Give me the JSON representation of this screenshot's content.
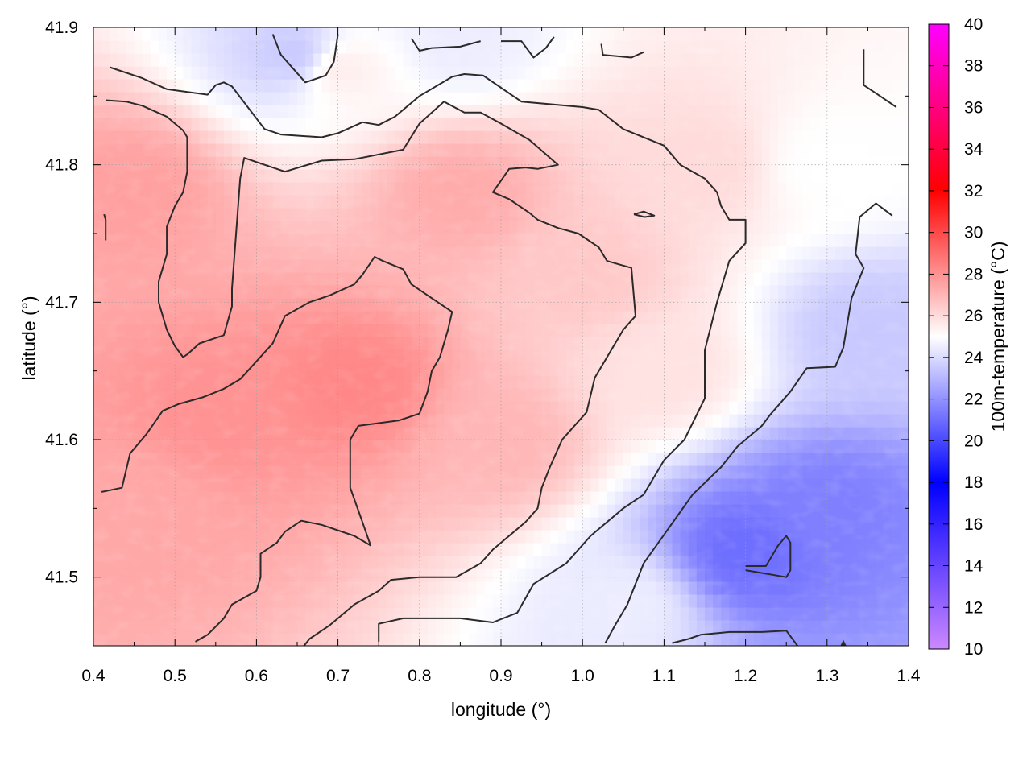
{
  "chart_data": {
    "type": "heatmap",
    "xlabel": "longitude (°)",
    "ylabel": "latitude (°)",
    "colorbar_label": "100m-temperature (°C)",
    "xlim": [
      0.4,
      1.4
    ],
    "ylim": [
      41.45,
      41.9
    ],
    "xticks": [
      "0.4",
      "0.5",
      "0.6",
      "0.7",
      "0.8",
      "0.9",
      "1.0",
      "1.1",
      "1.2",
      "1.3",
      "1.4"
    ],
    "yticks": [
      "41.5",
      "41.6",
      "41.7",
      "41.8",
      "41.9"
    ],
    "colorbar_range": [
      10,
      40
    ],
    "colorbar_ticks": [
      "10",
      "12",
      "14",
      "16",
      "18",
      "20",
      "22",
      "24",
      "26",
      "28",
      "30",
      "32",
      "34",
      "36",
      "38",
      "40"
    ],
    "colorbar_stops": [
      {
        "value": 10,
        "color": "#cc88ff"
      },
      {
        "value": 18,
        "color": "#0000ff"
      },
      {
        "value": 25,
        "color": "#ffffff"
      },
      {
        "value": 32,
        "color": "#ff0000"
      },
      {
        "value": 40,
        "color": "#ff00ff"
      }
    ],
    "grid": "dotted",
    "field_regions": [
      {
        "lon": 0.55,
        "lat": 41.62,
        "temp": 28.0
      },
      {
        "lon": 0.72,
        "lat": 41.64,
        "temp": 28.3
      },
      {
        "lon": 0.45,
        "lat": 41.78,
        "temp": 27.6
      },
      {
        "lon": 0.45,
        "lat": 41.55,
        "temp": 27.4
      },
      {
        "lon": 0.85,
        "lat": 41.78,
        "temp": 27.3
      },
      {
        "lon": 0.9,
        "lat": 41.6,
        "temp": 27.0
      },
      {
        "lon": 0.7,
        "lat": 41.87,
        "temp": 25.5
      },
      {
        "lon": 1.0,
        "lat": 41.72,
        "temp": 26.5
      },
      {
        "lon": 1.15,
        "lat": 41.8,
        "temp": 26.0
      },
      {
        "lon": 1.1,
        "lat": 41.65,
        "temp": 25.8
      },
      {
        "lon": 1.3,
        "lat": 41.8,
        "temp": 25.0
      },
      {
        "lon": 1.35,
        "lat": 41.68,
        "temp": 23.5
      },
      {
        "lon": 1.2,
        "lat": 41.52,
        "temp": 21.0
      },
      {
        "lon": 1.3,
        "lat": 41.55,
        "temp": 21.5
      },
      {
        "lon": 1.05,
        "lat": 41.48,
        "temp": 24.5
      },
      {
        "lon": 0.65,
        "lat": 41.88,
        "temp": 23.5
      },
      {
        "lon": 0.85,
        "lat": 41.89,
        "temp": 24.5
      }
    ],
    "contours": [
      [
        [
          0.42,
          41.871
        ],
        [
          0.46,
          41.863
        ],
        [
          0.49,
          41.855
        ],
        [
          0.54,
          41.851
        ],
        [
          0.55,
          41.858
        ],
        [
          0.56,
          41.86
        ],
        [
          0.57,
          41.857
        ],
        [
          0.61,
          41.826
        ],
        [
          0.63,
          41.822
        ],
        [
          0.68,
          41.82
        ],
        [
          0.7,
          41.823
        ],
        [
          0.73,
          41.831
        ],
        [
          0.75,
          41.829
        ],
        [
          0.77,
          41.835
        ],
        [
          0.8,
          41.85
        ],
        [
          0.84,
          41.864
        ],
        [
          0.855,
          41.866
        ],
        [
          0.878,
          41.865
        ],
        [
          0.925,
          41.846
        ],
        [
          1.0,
          41.842
        ],
        [
          1.02,
          41.84
        ],
        [
          1.05,
          41.826
        ],
        [
          1.1,
          41.814
        ],
        [
          1.12,
          41.8
        ],
        [
          1.15,
          41.79
        ],
        [
          1.165,
          41.78
        ],
        [
          1.17,
          41.77
        ],
        [
          1.18,
          41.76
        ],
        [
          1.2,
          41.76
        ],
        [
          1.2,
          41.743
        ],
        [
          1.18,
          41.73
        ],
        [
          1.165,
          41.7
        ],
        [
          1.15,
          41.665
        ],
        [
          1.15,
          41.638
        ],
        [
          1.15,
          41.63
        ],
        [
          1.125,
          41.6
        ],
        [
          1.1,
          41.585
        ],
        [
          1.075,
          41.56
        ],
        [
          1.05,
          41.55
        ],
        [
          1.01,
          41.53
        ],
        [
          0.98,
          41.51
        ],
        [
          0.94,
          41.495
        ],
        [
          0.92,
          41.474
        ],
        [
          0.89,
          41.467
        ],
        [
          0.85,
          41.47
        ],
        [
          0.78,
          41.47
        ],
        [
          0.75,
          41.466
        ],
        [
          0.75,
          41.453
        ]
      ],
      [
        [
          0.415,
          41.847
        ],
        [
          0.44,
          41.846
        ],
        [
          0.46,
          41.843
        ],
        [
          0.49,
          41.835
        ],
        [
          0.51,
          41.825
        ],
        [
          0.515,
          41.82
        ],
        [
          0.515,
          41.795
        ],
        [
          0.51,
          41.78
        ],
        [
          0.5,
          41.77
        ],
        [
          0.49,
          41.755
        ],
        [
          0.49,
          41.735
        ],
        [
          0.48,
          41.715
        ],
        [
          0.48,
          41.7
        ],
        [
          0.49,
          41.68
        ],
        [
          0.5,
          41.668
        ],
        [
          0.51,
          41.66
        ],
        [
          0.515,
          41.662
        ],
        [
          0.53,
          41.67
        ],
        [
          0.56,
          41.676
        ],
        [
          0.57,
          41.697
        ],
        [
          0.57,
          41.71
        ],
        [
          0.575,
          41.75
        ],
        [
          0.58,
          41.79
        ],
        [
          0.585,
          41.805
        ],
        [
          0.61,
          41.8
        ],
        [
          0.635,
          41.795
        ],
        [
          0.68,
          41.803
        ],
        [
          0.72,
          41.804
        ],
        [
          0.78,
          41.811
        ],
        [
          0.8,
          41.83
        ],
        [
          0.83,
          41.846
        ],
        [
          0.855,
          41.838
        ],
        [
          0.875,
          41.838
        ],
        [
          0.9,
          41.83
        ],
        [
          0.935,
          41.818
        ],
        [
          0.97,
          41.8
        ],
        [
          0.945,
          41.797
        ],
        [
          0.93,
          41.798
        ],
        [
          0.91,
          41.797
        ],
        [
          0.89,
          41.78
        ],
        [
          0.91,
          41.775
        ],
        [
          0.935,
          41.765
        ],
        [
          0.945,
          41.76
        ],
        [
          0.97,
          41.754
        ],
        [
          0.995,
          41.75
        ],
        [
          1.02,
          41.74
        ],
        [
          1.03,
          41.73
        ],
        [
          1.06,
          41.725
        ],
        [
          1.065,
          41.69
        ],
        [
          1.05,
          41.68
        ],
        [
          1.03,
          41.66
        ],
        [
          1.015,
          41.645
        ],
        [
          1.005,
          41.62
        ],
        [
          0.99,
          41.61
        ],
        [
          0.975,
          41.6
        ],
        [
          0.96,
          41.58
        ],
        [
          0.95,
          41.565
        ],
        [
          0.945,
          41.55
        ],
        [
          0.93,
          41.54
        ],
        [
          0.89,
          41.52
        ],
        [
          0.875,
          41.51
        ],
        [
          0.845,
          41.5
        ],
        [
          0.8,
          41.5
        ],
        [
          0.765,
          41.498
        ],
        [
          0.75,
          41.49
        ],
        [
          0.72,
          41.48
        ],
        [
          0.69,
          41.465
        ],
        [
          0.665,
          41.455
        ],
        [
          0.657,
          41.449
        ]
      ],
      [
        [
          0.413,
          41.764
        ],
        [
          0.415,
          41.76
        ],
        [
          0.415,
          41.745
        ]
      ],
      [
        [
          0.525,
          41.453
        ],
        [
          0.54,
          41.458
        ],
        [
          0.56,
          41.47
        ],
        [
          0.57,
          41.48
        ],
        [
          0.6,
          41.49
        ],
        [
          0.605,
          41.5
        ],
        [
          0.605,
          41.517
        ],
        [
          0.625,
          41.525
        ],
        [
          0.635,
          41.533
        ],
        [
          0.655,
          41.541
        ],
        [
          0.68,
          41.538
        ],
        [
          0.72,
          41.53
        ],
        [
          0.74,
          41.523
        ],
        [
          0.73,
          41.54
        ],
        [
          0.715,
          41.565
        ],
        [
          0.715,
          41.585
        ],
        [
          0.715,
          41.6
        ],
        [
          0.725,
          41.61
        ],
        [
          0.75,
          41.612
        ],
        [
          0.775,
          41.614
        ],
        [
          0.8,
          41.619
        ],
        [
          0.81,
          41.635
        ],
        [
          0.815,
          41.65
        ],
        [
          0.825,
          41.66
        ],
        [
          0.835,
          41.68
        ],
        [
          0.84,
          41.693
        ],
        [
          0.81,
          41.705
        ],
        [
          0.79,
          41.713
        ],
        [
          0.78,
          41.724
        ],
        [
          0.755,
          41.73
        ],
        [
          0.745,
          41.733
        ],
        [
          0.73,
          41.72
        ],
        [
          0.72,
          41.713
        ],
        [
          0.69,
          41.705
        ],
        [
          0.665,
          41.7
        ],
        [
          0.635,
          41.69
        ],
        [
          0.62,
          41.67
        ],
        [
          0.6,
          41.657
        ],
        [
          0.58,
          41.644
        ],
        [
          0.56,
          41.637
        ],
        [
          0.535,
          41.631
        ],
        [
          0.505,
          41.626
        ],
        [
          0.485,
          41.621
        ],
        [
          0.465,
          41.604
        ],
        [
          0.445,
          41.59
        ],
        [
          0.435,
          41.565
        ],
        [
          0.41,
          41.562
        ]
      ],
      [
        [
          1.063,
          41.764
        ],
        [
          1.076,
          41.762
        ],
        [
          1.088,
          41.763
        ],
        [
          1.075,
          41.766
        ],
        [
          1.063,
          41.764
        ]
      ],
      [
        [
          1.2,
          41.508
        ],
        [
          1.225,
          41.508
        ],
        [
          1.24,
          41.523
        ],
        [
          1.25,
          41.53
        ],
        [
          1.255,
          41.525
        ],
        [
          1.255,
          41.505
        ],
        [
          1.25,
          41.5
        ],
        [
          1.2,
          41.505
        ]
      ],
      [
        [
          1.11,
          41.452
        ],
        [
          1.13,
          41.455
        ],
        [
          1.145,
          41.458
        ],
        [
          1.18,
          41.46
        ],
        [
          1.22,
          41.46
        ],
        [
          1.25,
          41.461
        ],
        [
          1.27,
          41.445
        ]
      ],
      [
        [
          1.028,
          41.452
        ],
        [
          1.04,
          41.465
        ],
        [
          1.055,
          41.48
        ],
        [
          1.075,
          41.51
        ],
        [
          1.105,
          41.535
        ],
        [
          1.135,
          41.56
        ],
        [
          1.17,
          41.58
        ],
        [
          1.19,
          41.595
        ],
        [
          1.22,
          41.61
        ],
        [
          1.23,
          41.618
        ],
        [
          1.255,
          41.635
        ],
        [
          1.275,
          41.652
        ],
        [
          1.31,
          41.653
        ],
        [
          1.32,
          41.667
        ],
        [
          1.33,
          41.703
        ],
        [
          1.345,
          41.725
        ],
        [
          1.335,
          41.735
        ],
        [
          1.34,
          41.762
        ],
        [
          1.36,
          41.772
        ],
        [
          1.38,
          41.763
        ]
      ],
      [
        [
          0.62,
          41.895
        ],
        [
          0.63,
          41.88
        ],
        [
          0.66,
          41.86
        ],
        [
          0.685,
          41.865
        ],
        [
          0.695,
          41.875
        ],
        [
          0.7,
          41.895
        ]
      ],
      [
        [
          0.79,
          41.892
        ],
        [
          0.8,
          41.883
        ],
        [
          0.815,
          41.885
        ],
        [
          0.85,
          41.886
        ],
        [
          0.875,
          41.89
        ]
      ],
      [
        [
          0.9,
          41.89
        ],
        [
          0.925,
          41.89
        ],
        [
          0.94,
          41.878
        ],
        [
          0.955,
          41.885
        ],
        [
          0.965,
          41.893
        ]
      ],
      [
        [
          1.023,
          41.888
        ],
        [
          1.025,
          41.88
        ],
        [
          1.06,
          41.878
        ],
        [
          1.075,
          41.882
        ]
      ],
      [
        [
          1.345,
          41.884
        ],
        [
          1.345,
          41.858
        ],
        [
          1.365,
          41.85
        ],
        [
          1.385,
          41.842
        ]
      ]
    ],
    "marker": {
      "lon": 1.32,
      "lat": 41.452
    }
  }
}
